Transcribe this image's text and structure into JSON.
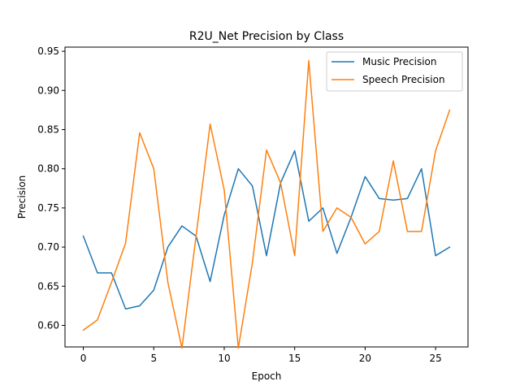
{
  "chart_data": {
    "type": "line",
    "title": "R2U_Net Precision by Class",
    "xlabel": "Epoch",
    "ylabel": "Precision",
    "xlim": [
      -1.3,
      27.3
    ],
    "ylim": [
      0.5725,
      0.9553
    ],
    "xticks": [
      0,
      5,
      10,
      15,
      20,
      25
    ],
    "xtick_labels": [
      "0",
      "5",
      "10",
      "15",
      "20",
      "25"
    ],
    "yticks": [
      0.6,
      0.65,
      0.7,
      0.75,
      0.8,
      0.85,
      0.9,
      0.95
    ],
    "ytick_labels": [
      "0.60",
      "0.65",
      "0.70",
      "0.75",
      "0.80",
      "0.85",
      "0.90",
      "0.95"
    ],
    "grid": false,
    "legend_position": "top-right",
    "x": [
      0,
      1,
      2,
      3,
      4,
      5,
      6,
      7,
      8,
      9,
      10,
      11,
      12,
      13,
      14,
      15,
      16,
      17,
      18,
      19,
      20,
      21,
      22,
      23,
      24,
      25,
      26
    ],
    "series": [
      {
        "name": "Music Precision",
        "color": "#1f77b4",
        "values": [
          0.714,
          0.667,
          0.667,
          0.621,
          0.625,
          0.645,
          0.7,
          0.727,
          0.714,
          0.656,
          0.741,
          0.8,
          0.778,
          0.689,
          0.782,
          0.823,
          0.733,
          0.75,
          0.692,
          0.738,
          0.79,
          0.762,
          0.76,
          0.762,
          0.8,
          0.689,
          0.7
        ]
      },
      {
        "name": "Speech Precision",
        "color": "#ff7f0e",
        "values": [
          0.594,
          0.607,
          0.655,
          0.705,
          0.846,
          0.8,
          0.655,
          0.571,
          0.714,
          0.857,
          0.773,
          0.571,
          0.68,
          0.824,
          0.782,
          0.689,
          0.938,
          0.72,
          0.75,
          0.738,
          0.704,
          0.72,
          0.81,
          0.72,
          0.72,
          0.823,
          0.875
        ]
      }
    ]
  }
}
